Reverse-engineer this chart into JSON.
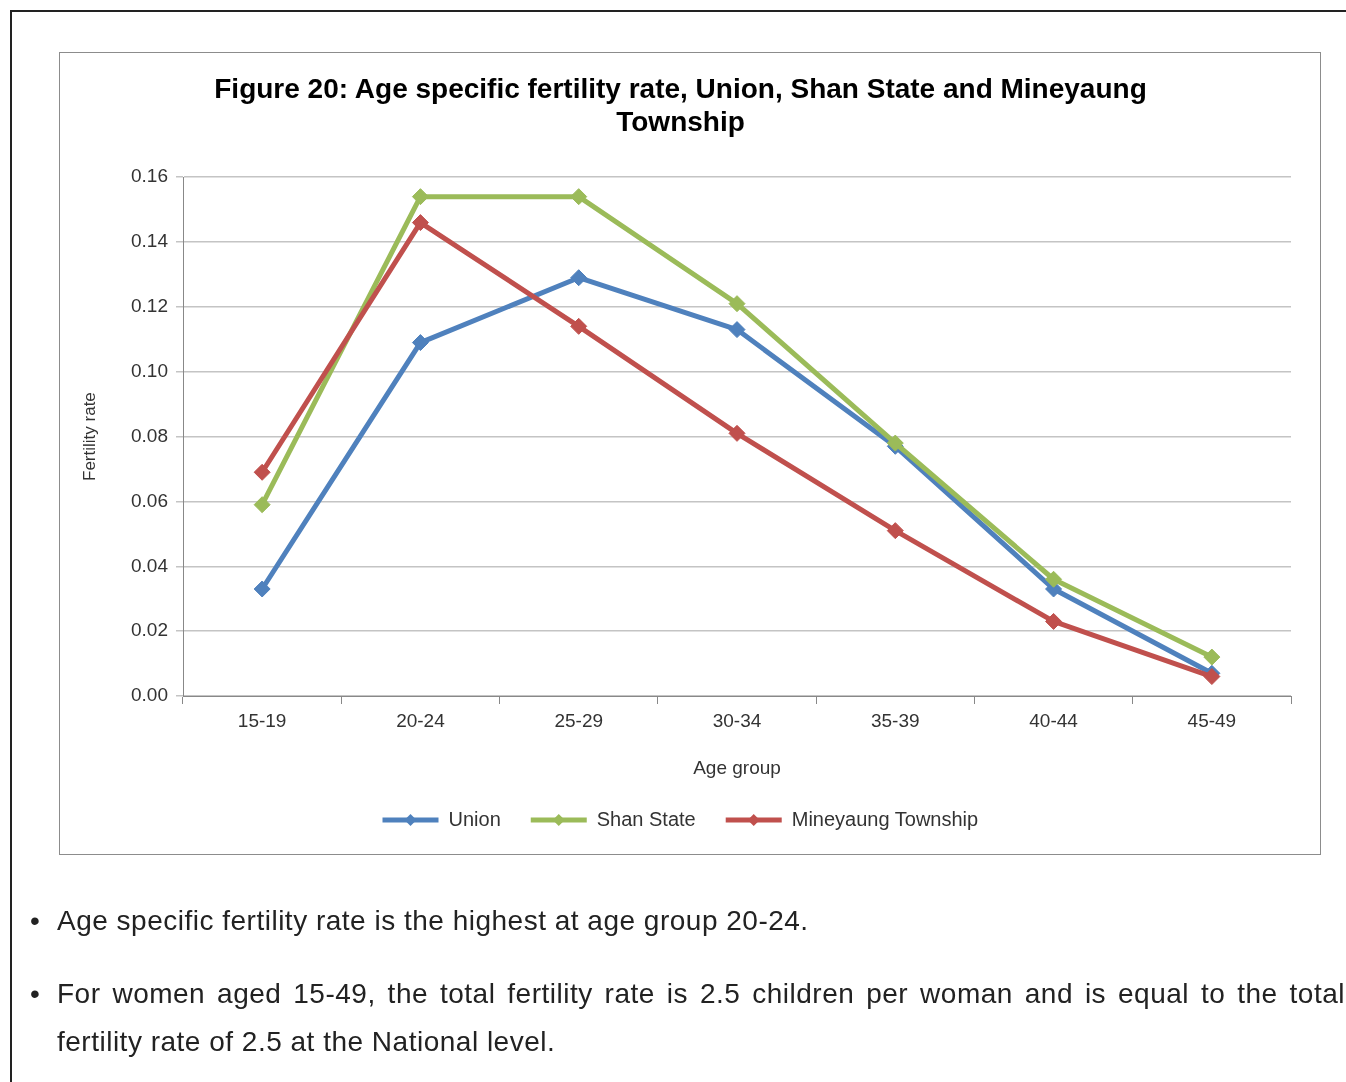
{
  "chart_data": {
    "type": "line",
    "title": "Figure 20: Age specific fertility rate, Union, Shan State and Mineyaung Township",
    "xlabel": "Age group",
    "ylabel": "Fertility rate",
    "categories": [
      "15-19",
      "20-24",
      "25-29",
      "30-34",
      "35-39",
      "40-44",
      "45-49"
    ],
    "series": [
      {
        "name": "Union",
        "color": "#4f81bd",
        "values": [
          0.033,
          0.109,
          0.129,
          0.113,
          0.077,
          0.033,
          0.007
        ]
      },
      {
        "name": "Shan State",
        "color": "#9bbb59",
        "values": [
          0.059,
          0.154,
          0.154,
          0.121,
          0.078,
          0.036,
          0.012
        ]
      },
      {
        "name": "Mineyaung Township",
        "color": "#c0504d",
        "values": [
          0.069,
          0.146,
          0.114,
          0.081,
          0.051,
          0.023,
          0.006
        ]
      }
    ],
    "ylim": [
      0,
      0.16
    ],
    "yticks": [
      {
        "value": 0,
        "label": "0.00"
      },
      0.02,
      0.04,
      0.06,
      0.08,
      {
        "value": 0.1,
        "label": "0.10"
      },
      0.12,
      0.14,
      0.16
    ],
    "grid": "y",
    "legend": "bottom",
    "marker": "diamond",
    "line_style": "solid",
    "annotations": [
      "• Age specific fertility rate is the highest at age group 20-24.",
      "• For women aged 15-49, the total fertility rate is 2.5 children per woman and is equal to the total fertility rate of 2.5 at the National level."
    ]
  }
}
